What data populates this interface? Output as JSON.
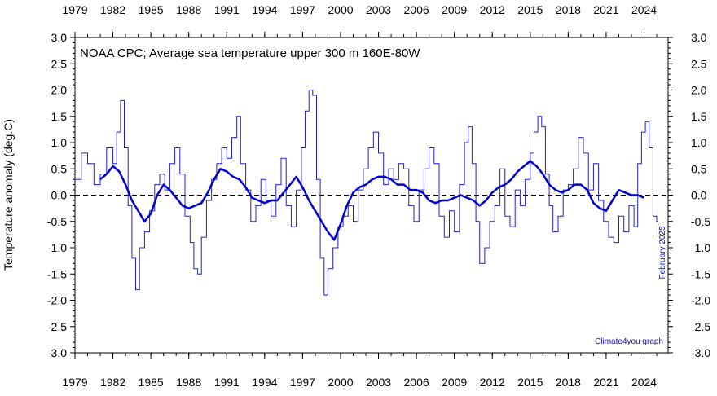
{
  "chart_data": {
    "type": "line",
    "title": "NOAA CPC; Average sea temperature upper 300 m 160E-80W",
    "ylabel": "Temperature anomaly (deg.C)",
    "xlabel": "",
    "credit": "Climate4you graph",
    "date_stamp": "February 2025",
    "xlim": [
      1979,
      2025.9
    ],
    "ylim": [
      -3.0,
      3.0
    ],
    "x_tick_labels": [
      "1979",
      "1982",
      "1985",
      "1988",
      "1991",
      "1994",
      "1997",
      "2000",
      "2003",
      "2006",
      "2009",
      "2012",
      "2015",
      "2018",
      "2021",
      "2024"
    ],
    "y_tick_labels": [
      "3.0",
      "2.5",
      "2.0",
      "1.5",
      "1.0",
      "0.5",
      "0.0",
      "-0.5",
      "-1.0",
      "-1.5",
      "-2.0",
      "-2.5",
      "-3.0"
    ],
    "reference_line": {
      "y": 0.0,
      "style": "dashed"
    },
    "colors": {
      "monthly": "#2020d0",
      "running_mean": "#0000cc",
      "axes": "#000000",
      "annotation": "#1010c0"
    },
    "series": [
      {
        "style": "thin-step",
        "x": [
          1979.0,
          1979.5,
          1980.0,
          1980.5,
          1981.0,
          1981.5,
          1982.0,
          1982.3,
          1982.6,
          1982.9,
          1983.2,
          1983.5,
          1983.8,
          1984.1,
          1984.5,
          1984.9,
          1985.3,
          1985.7,
          1986.1,
          1986.5,
          1986.9,
          1987.3,
          1987.7,
          1988.1,
          1988.4,
          1988.7,
          1989.0,
          1989.4,
          1989.8,
          1990.2,
          1990.6,
          1991.0,
          1991.4,
          1991.8,
          1992.1,
          1992.5,
          1992.9,
          1993.3,
          1993.7,
          1994.1,
          1994.5,
          1994.9,
          1995.3,
          1995.7,
          1996.1,
          1996.5,
          1996.9,
          1997.2,
          1997.5,
          1997.8,
          1998.1,
          1998.4,
          1998.7,
          1999.0,
          1999.4,
          1999.8,
          2000.2,
          2000.6,
          2001.0,
          2001.4,
          2001.8,
          2002.2,
          2002.6,
          2003.0,
          2003.4,
          2003.8,
          2004.2,
          2004.6,
          2005.0,
          2005.4,
          2005.8,
          2006.2,
          2006.6,
          2007.0,
          2007.4,
          2007.8,
          2008.2,
          2008.6,
          2009.0,
          2009.4,
          2009.8,
          2010.1,
          2010.4,
          2010.7,
          2011.0,
          2011.4,
          2011.8,
          2012.2,
          2012.6,
          2013.0,
          2013.4,
          2013.8,
          2014.2,
          2014.6,
          2015.0,
          2015.3,
          2015.6,
          2015.9,
          2016.2,
          2016.5,
          2016.8,
          2017.2,
          2017.6,
          2018.0,
          2018.4,
          2018.8,
          2019.2,
          2019.6,
          2020.0,
          2020.4,
          2020.8,
          2021.2,
          2021.6,
          2022.0,
          2022.4,
          2022.8,
          2023.2,
          2023.5,
          2023.8,
          2024.1,
          2024.4,
          2024.7,
          2025.0,
          2025.1
        ],
        "y": [
          0.3,
          0.8,
          0.6,
          0.2,
          0.4,
          0.9,
          0.6,
          1.2,
          1.8,
          0.9,
          -0.2,
          -1.2,
          -1.8,
          -1.0,
          -0.7,
          -0.3,
          0.2,
          0.4,
          0.1,
          0.6,
          0.9,
          0.4,
          -0.4,
          -0.9,
          -1.4,
          -1.5,
          -0.8,
          -0.1,
          0.3,
          0.6,
          0.9,
          0.7,
          1.1,
          1.5,
          0.6,
          0.1,
          -0.5,
          -0.2,
          0.3,
          -0.1,
          -0.4,
          0.2,
          0.7,
          -0.2,
          -0.6,
          0.1,
          0.9,
          1.6,
          2.0,
          1.9,
          0.3,
          -1.2,
          -1.9,
          -1.4,
          -1.0,
          -0.6,
          -0.4,
          -0.2,
          -0.5,
          0.1,
          0.5,
          0.9,
          1.2,
          0.8,
          0.2,
          0.5,
          0.3,
          0.6,
          0.5,
          -0.2,
          -0.5,
          0.1,
          0.5,
          0.9,
          0.6,
          -0.4,
          -0.8,
          -0.3,
          -0.7,
          0.2,
          1.0,
          1.3,
          0.6,
          -0.5,
          -1.3,
          -1.0,
          -0.5,
          -0.2,
          0.5,
          -0.4,
          -0.6,
          0.1,
          -0.2,
          0.3,
          0.8,
          1.2,
          1.5,
          1.3,
          0.4,
          -0.2,
          -0.7,
          -0.4,
          0.1,
          0.2,
          0.5,
          1.1,
          0.8,
          0.1,
          0.6,
          -0.1,
          -0.5,
          -0.8,
          -0.9,
          -0.4,
          -0.7,
          -0.2,
          -0.6,
          0.6,
          1.2,
          1.4,
          0.9,
          -0.4,
          -0.5,
          -0.8
        ]
      },
      {
        "style": "thick-running-mean",
        "x": [
          1981.0,
          1981.5,
          1982.0,
          1982.5,
          1983.0,
          1983.5,
          1984.0,
          1984.5,
          1985.0,
          1985.5,
          1986.0,
          1986.5,
          1987.0,
          1987.5,
          1988.0,
          1988.5,
          1989.0,
          1989.5,
          1990.0,
          1990.5,
          1991.0,
          1991.5,
          1992.0,
          1992.5,
          1993.0,
          1993.5,
          1994.0,
          1994.5,
          1995.0,
          1995.5,
          1996.0,
          1996.5,
          1997.0,
          1997.5,
          1998.0,
          1998.5,
          1999.0,
          1999.5,
          2000.0,
          2000.5,
          2001.0,
          2001.5,
          2002.0,
          2002.5,
          2003.0,
          2003.5,
          2004.0,
          2004.5,
          2005.0,
          2005.5,
          2006.0,
          2006.5,
          2007.0,
          2007.5,
          2008.0,
          2008.5,
          2009.0,
          2009.5,
          2010.0,
          2010.5,
          2011.0,
          2011.5,
          2012.0,
          2012.5,
          2013.0,
          2013.5,
          2014.0,
          2014.5,
          2015.0,
          2015.5,
          2016.0,
          2016.5,
          2017.0,
          2017.5,
          2018.0,
          2018.5,
          2019.0,
          2019.5,
          2020.0,
          2020.5,
          2021.0,
          2021.5,
          2022.0,
          2022.5,
          2023.0,
          2023.5,
          2024.0
        ],
        "y": [
          0.3,
          0.4,
          0.55,
          0.45,
          0.2,
          -0.1,
          -0.3,
          -0.5,
          -0.35,
          0.0,
          0.2,
          0.1,
          -0.05,
          -0.2,
          -0.25,
          -0.2,
          -0.15,
          0.05,
          0.3,
          0.5,
          0.45,
          0.35,
          0.3,
          0.15,
          -0.05,
          -0.1,
          -0.15,
          -0.1,
          -0.1,
          0.05,
          0.2,
          0.35,
          0.15,
          -0.1,
          -0.3,
          -0.5,
          -0.7,
          -0.85,
          -0.55,
          -0.2,
          0.05,
          0.15,
          0.2,
          0.3,
          0.35,
          0.35,
          0.3,
          0.2,
          0.2,
          0.1,
          0.1,
          0.05,
          -0.1,
          -0.15,
          -0.1,
          -0.1,
          -0.05,
          0.0,
          -0.05,
          -0.1,
          -0.2,
          -0.1,
          0.05,
          0.15,
          0.2,
          0.3,
          0.45,
          0.55,
          0.65,
          0.55,
          0.4,
          0.2,
          0.1,
          0.05,
          0.1,
          0.2,
          0.2,
          0.1,
          -0.15,
          -0.25,
          -0.3,
          -0.1,
          0.1,
          0.05,
          0.0,
          0.0,
          -0.05
        ]
      }
    ]
  }
}
